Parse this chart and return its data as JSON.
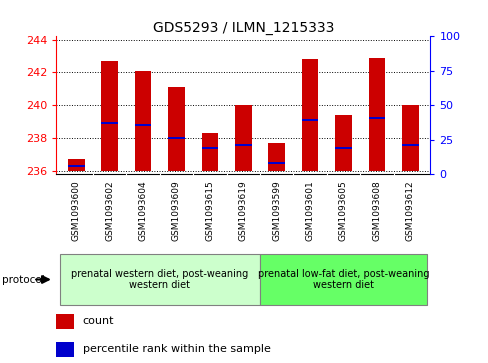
{
  "title": "GDS5293 / ILMN_1215333",
  "categories": [
    "GSM1093600",
    "GSM1093602",
    "GSM1093604",
    "GSM1093609",
    "GSM1093615",
    "GSM1093619",
    "GSM1093599",
    "GSM1093601",
    "GSM1093605",
    "GSM1093608",
    "GSM1093612"
  ],
  "bar_tops": [
    236.7,
    242.7,
    242.1,
    241.1,
    238.3,
    240.0,
    237.7,
    242.8,
    239.4,
    242.9,
    240.0
  ],
  "bar_base": 236,
  "blue_values": [
    236.3,
    238.9,
    238.8,
    238.0,
    237.4,
    237.6,
    236.5,
    239.1,
    237.4,
    239.2,
    237.6
  ],
  "ylim_left": [
    235.8,
    244.2
  ],
  "ylim_right": [
    0,
    100
  ],
  "yticks_left": [
    236,
    238,
    240,
    242,
    244
  ],
  "yticks_right": [
    0,
    25,
    50,
    75,
    100
  ],
  "bar_color": "#cc0000",
  "blue_color": "#0000cc",
  "group1_indices": [
    0,
    1,
    2,
    3,
    4,
    5
  ],
  "group2_indices": [
    6,
    7,
    8,
    9,
    10
  ],
  "group1_label": "prenatal western diet, post-weaning\nwestern diet",
  "group2_label": "prenatal low-fat diet, post-weaning\nwestern diet",
  "protocol_label": "protocol",
  "legend_count": "count",
  "legend_percentile": "percentile rank within the sample",
  "group1_color": "#ccffcc",
  "group2_color": "#66ff66",
  "xlabels_bg": "#d8d8d8",
  "bar_width": 0.5,
  "title_fontsize": 10,
  "tick_fontsize": 8,
  "xlabel_fontsize": 6.5,
  "group_fontsize": 7,
  "legend_fontsize": 8
}
